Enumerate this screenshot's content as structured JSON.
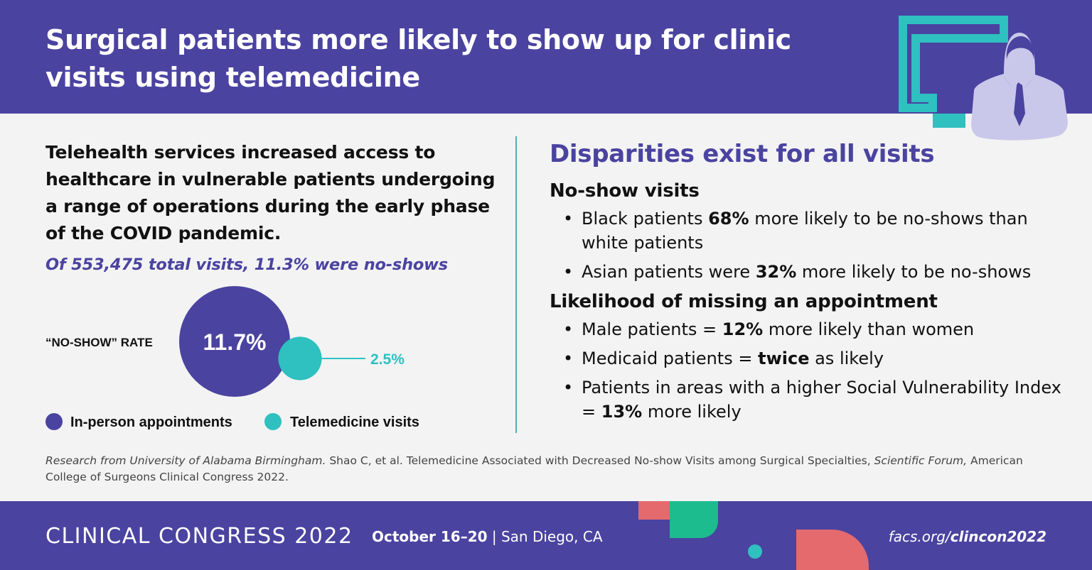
{
  "header": {
    "title": "Surgical patients more likely to show up for clinic visits using telemedicine"
  },
  "left": {
    "intro": "Telehealth services increased access to healthcare in vulnerable patients undergoing a range of operations during the early phase of the COVID pandemic.",
    "totals": "Of 553,475 total visits, 11.3% were no-shows"
  },
  "chart_data": {
    "type": "bubble",
    "title": "“NO-SHOW” RATE",
    "series": [
      {
        "name": "In-person appointments",
        "value": 11.7,
        "label": "11.7%",
        "color": "#4a43a0"
      },
      {
        "name": "Telemedicine visits",
        "value": 2.5,
        "label": "2.5%",
        "color": "#2fc0c0"
      }
    ]
  },
  "right": {
    "heading": "Disparities exist for all visits",
    "section1": {
      "title": "No-show visits",
      "items": [
        {
          "pre": "Black patients ",
          "bold": "68%",
          "post": " more likely to be no-shows than white patients"
        },
        {
          "pre": "Asian patients were ",
          "bold": "32%",
          "post": " more likely to be no-shows"
        }
      ]
    },
    "section2": {
      "title": "Likelihood of missing an appointment",
      "items": [
        {
          "pre": "Male patients = ",
          "bold": "12%",
          "post": " more likely than women"
        },
        {
          "pre": "Medicaid patients = ",
          "bold": "twice",
          "post": " as likely"
        },
        {
          "pre": "Patients in areas with a higher Social Vulnerability Index = ",
          "bold": "13%",
          "post": " more likely"
        }
      ]
    }
  },
  "citation": {
    "part1": "Research from University of Alabama Birmingham.",
    "part2": " Shao C, et al. Telemedicine Associated with Decreased No-show Visits among Surgical Specialties, ",
    "part3": "Scientific Forum,",
    "part4": " American College of Surgeons Clinical Congress 2022."
  },
  "footer": {
    "event": "CLINICAL CONGRESS 2022",
    "dates": "October 16–20",
    "separator": " | ",
    "location": "San Diego, CA",
    "url_prefix": "facs.org/",
    "url_bold": "clincon2022"
  },
  "colors": {
    "primary": "#4a43a0",
    "teal": "#2fc0c0",
    "divider": "#48b3b7",
    "icon_person": "#c9c8ea",
    "deco_coral": "#e46a6e",
    "deco_green": "#1dbc8e"
  },
  "icons": {
    "hero": "monitor-person-icon"
  }
}
